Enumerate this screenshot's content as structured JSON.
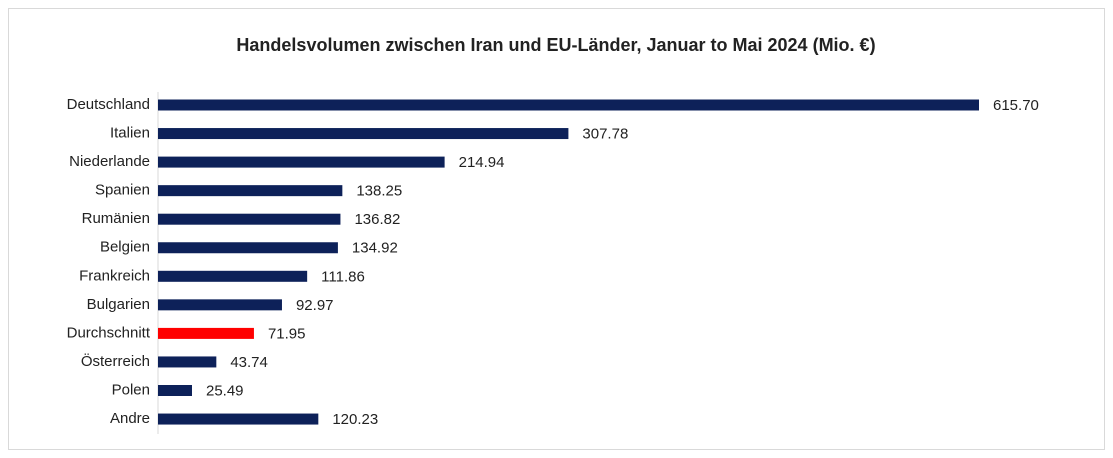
{
  "chart_data": {
    "type": "bar",
    "orientation": "horizontal",
    "title": "Handelsvolumen zwischen Iran und EU-Länder, Januar to Mai 2024 (Mio. €)",
    "categories": [
      "Deutschland",
      "Italien",
      "Niederlande",
      "Spanien",
      "Rumänien",
      "Belgien",
      "Frankreich",
      "Bulgarien",
      "Durchschnitt",
      "Österreich",
      "Polen",
      "Andre"
    ],
    "values": [
      615.7,
      307.78,
      214.94,
      138.25,
      136.82,
      134.92,
      111.86,
      92.97,
      71.95,
      43.74,
      25.49,
      120.23
    ],
    "value_labels": [
      "615.70",
      "307.78",
      "214.94",
      "138.25",
      "136.82",
      "134.92",
      "111.86",
      "92.97",
      "71.95",
      "43.74",
      "25.49",
      "120.23"
    ],
    "colors": [
      "#0d2159",
      "#0d2159",
      "#0d2159",
      "#0d2159",
      "#0d2159",
      "#0d2159",
      "#0d2159",
      "#0d2159",
      "#ff0000",
      "#0d2159",
      "#0d2159",
      "#0d2159"
    ]
  }
}
